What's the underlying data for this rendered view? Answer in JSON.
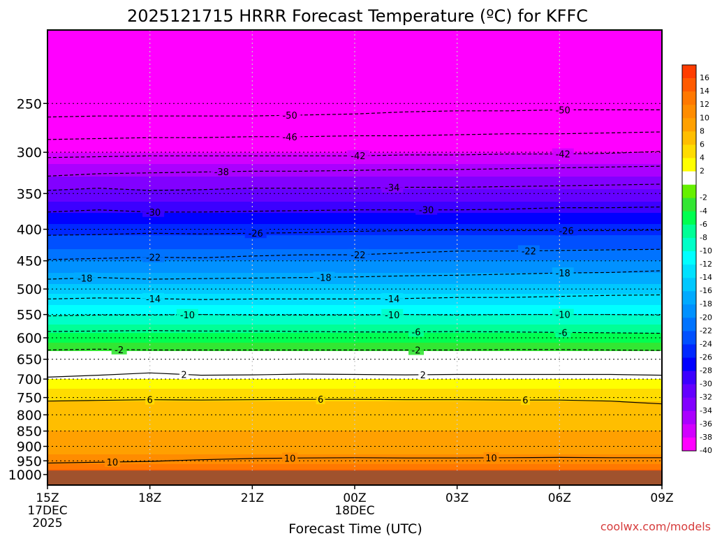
{
  "page": {
    "title": "2025121715 HRRR Forecast Temperature (ºC) for KFFC",
    "xlabel": "Forecast Time (UTC)",
    "credit": "coolwx.com/models"
  },
  "chart_data": {
    "type": "heatmap",
    "title": "2025121715 HRRR Forecast Temperature (ºC) for KFFC",
    "xlabel": "Forecast Time (UTC)",
    "ylabel": "",
    "x_unit": "hours from 15Z 17DEC 2025",
    "xlim": [
      0,
      18
    ],
    "x_ticks": [
      {
        "value": 0,
        "lines": [
          "15Z",
          "17DEC",
          "2025"
        ]
      },
      {
        "value": 3,
        "lines": [
          "18Z"
        ]
      },
      {
        "value": 6,
        "lines": [
          "21Z"
        ]
      },
      {
        "value": 9,
        "lines": [
          "00Z",
          "18DEC"
        ]
      },
      {
        "value": 12,
        "lines": [
          "03Z"
        ]
      },
      {
        "value": 15,
        "lines": [
          "06Z"
        ]
      },
      {
        "value": 18,
        "lines": [
          "09Z"
        ]
      }
    ],
    "y_axis": {
      "label": "",
      "scale": "log",
      "inverted": true,
      "ylim": [
        1040,
        190
      ]
    },
    "y_ticks": [
      250,
      300,
      350,
      400,
      450,
      500,
      550,
      600,
      650,
      700,
      750,
      800,
      850,
      900,
      950,
      1000
    ],
    "surface_pressure": 985,
    "grid": true,
    "legend": "right colorbar",
    "colorbar": {
      "levels": [
        {
          "label": "16",
          "color": "#ff3c00"
        },
        {
          "label": "14",
          "color": "#ff5a00"
        },
        {
          "label": "12",
          "color": "#ff7800"
        },
        {
          "label": "10",
          "color": "#ff8c00"
        },
        {
          "label": "8",
          "color": "#ffa000"
        },
        {
          "label": "6",
          "color": "#ffbe00"
        },
        {
          "label": "4",
          "color": "#ffdc00"
        },
        {
          "label": "2",
          "color": "#ffff00"
        },
        {
          "label": "",
          "color": "#ffffff"
        },
        {
          "label": "-2",
          "color": "#66f000"
        },
        {
          "label": "-4",
          "color": "#33e633"
        },
        {
          "label": "-6",
          "color": "#00ff50"
        },
        {
          "label": "-8",
          "color": "#00ff96"
        },
        {
          "label": "-10",
          "color": "#00ffc8"
        },
        {
          "label": "-12",
          "color": "#00ffff"
        },
        {
          "label": "-14",
          "color": "#00e1ff"
        },
        {
          "label": "-16",
          "color": "#00c8ff"
        },
        {
          "label": "-18",
          "color": "#00aaff"
        },
        {
          "label": "-20",
          "color": "#0091ff"
        },
        {
          "label": "-22",
          "color": "#0073ff"
        },
        {
          "label": "-24",
          "color": "#0050ff"
        },
        {
          "label": "-26",
          "color": "#0028ff"
        },
        {
          "label": "-28",
          "color": "#0000ff"
        },
        {
          "label": "-30",
          "color": "#3c00ff"
        },
        {
          "label": "-32",
          "color": "#6400ff"
        },
        {
          "label": "-34",
          "color": "#8200ff"
        },
        {
          "label": "-36",
          "color": "#aa00ff"
        },
        {
          "label": "-38",
          "color": "#d200ff"
        },
        {
          "label": "-40",
          "color": "#ff00ff"
        }
      ]
    },
    "temperature_profile": {
      "pressure": [
        1000,
        975,
        950,
        925,
        900,
        875,
        850,
        825,
        800,
        775,
        750,
        725,
        700,
        685,
        670,
        655,
        640,
        630,
        620,
        600,
        580,
        560,
        540,
        520,
        500,
        480,
        460,
        440,
        420,
        400,
        380,
        360,
        340,
        320,
        300,
        280,
        260,
        240,
        220,
        200
      ],
      "temperature": [
        16,
        13,
        11,
        10,
        9.5,
        9,
        8,
        7.5,
        7,
        6.5,
        5.5,
        4,
        2,
        1,
        0,
        -1,
        -1.5,
        -2,
        -3,
        -5,
        -7,
        -9,
        -11,
        -13,
        -15,
        -17,
        -19,
        -21,
        -23,
        -25,
        -27.5,
        -30,
        -32.5,
        -35,
        -38,
        -41,
        -44,
        -48,
        -52,
        -56
      ]
    },
    "contours": [
      {
        "value": 10,
        "style": "solid",
        "pressure": [
          958,
          955,
          952,
          946,
          942,
          940,
          939,
          940,
          940,
          939,
          938,
          939,
          939
        ],
        "labels": [
          {
            "x": 1.9,
            "text": "10"
          },
          {
            "x": 7.1,
            "text": "10"
          },
          {
            "x": 13.0,
            "text": "10"
          }
        ]
      },
      {
        "value": 6,
        "style": "solid",
        "pressure": [
          760,
          758,
          756,
          757,
          756,
          755,
          755,
          756,
          756,
          757,
          757,
          760,
          768
        ],
        "labels": [
          {
            "x": 3.0,
            "text": "6"
          },
          {
            "x": 8.0,
            "text": "6"
          },
          {
            "x": 14.0,
            "text": "6"
          }
        ]
      },
      {
        "value": 2,
        "style": "solid",
        "pressure": [
          695,
          690,
          684,
          690,
          689,
          687,
          688,
          689,
          688,
          688,
          688,
          688,
          690
        ],
        "labels": [
          {
            "x": 4.0,
            "text": "2"
          },
          {
            "x": 11.0,
            "text": "2"
          }
        ]
      },
      {
        "value": -2,
        "style": "dashed",
        "pressure": [
          628,
          626,
          628,
          628,
          628,
          628,
          628,
          628,
          628,
          627,
          627,
          628,
          629
        ],
        "labels": [
          {
            "x": 2.1,
            "text": "-2"
          },
          {
            "x": 10.8,
            "text": "-2"
          }
        ]
      },
      {
        "value": -6,
        "style": "dashed",
        "pressure": [
          586,
          585,
          584,
          585,
          585,
          586,
          587,
          587,
          586,
          587,
          588,
          589,
          590
        ],
        "labels": [
          {
            "x": 10.8,
            "text": "-6"
          },
          {
            "x": 15.1,
            "text": "-6"
          }
        ]
      },
      {
        "value": -10,
        "style": "dashed",
        "pressure": [
          553,
          551,
          551,
          550,
          551,
          551,
          551,
          550,
          551,
          550,
          550,
          550,
          551
        ],
        "labels": [
          {
            "x": 4.1,
            "text": "-10"
          },
          {
            "x": 10.1,
            "text": "-10"
          },
          {
            "x": 15.1,
            "text": "-10"
          }
        ]
      },
      {
        "value": -14,
        "style": "dashed",
        "pressure": [
          519,
          517,
          518,
          520,
          519,
          519,
          519,
          518,
          516,
          516,
          514,
          512,
          511
        ],
        "labels": [
          {
            "x": 3.1,
            "text": "-14"
          },
          {
            "x": 10.1,
            "text": "-14"
          }
        ]
      },
      {
        "value": -18,
        "style": "dashed",
        "pressure": [
          482,
          479,
          482,
          481,
          480,
          479,
          478,
          476,
          475,
          473,
          471,
          470,
          467
        ],
        "labels": [
          {
            "x": 1.1,
            "text": "-18"
          },
          {
            "x": 8.1,
            "text": "-18"
          },
          {
            "x": 15.1,
            "text": "-18"
          }
        ]
      },
      {
        "value": -22,
        "style": "dashed",
        "pressure": [
          448,
          446,
          444,
          445,
          442,
          440,
          440,
          437,
          434,
          434,
          433,
          432,
          431
        ],
        "labels": [
          {
            "x": 3.1,
            "text": "-22"
          },
          {
            "x": 9.1,
            "text": "-22"
          },
          {
            "x": 14.1,
            "text": "-22"
          }
        ]
      },
      {
        "value": -26,
        "style": "dashed",
        "pressure": [
          409,
          408,
          406,
          407,
          406,
          405,
          403,
          402,
          401,
          402,
          402,
          402,
          401
        ],
        "labels": [
          {
            "x": 6.1,
            "text": "-26"
          },
          {
            "x": 15.2,
            "text": "-26"
          }
        ]
      },
      {
        "value": -30,
        "style": "dashed",
        "pressure": [
          375,
          372,
          375,
          375,
          374,
          373,
          372,
          372,
          372,
          371,
          369,
          369,
          368
        ],
        "labels": [
          {
            "x": 3.1,
            "text": "-30"
          },
          {
            "x": 11.1,
            "text": "-30"
          }
        ]
      },
      {
        "value": -34,
        "style": "dashed",
        "pressure": [
          346,
          343,
          346,
          345,
          343,
          343,
          343,
          342,
          342,
          341,
          340,
          339,
          338
        ],
        "labels": [
          {
            "x": 10.1,
            "text": "-34"
          }
        ]
      },
      {
        "value": -38,
        "style": "dashed",
        "pressure": [
          328,
          325,
          324,
          323,
          322,
          322,
          321,
          320,
          320,
          319,
          318,
          317,
          316
        ],
        "labels": [
          {
            "x": 5.1,
            "text": "-38"
          }
        ]
      },
      {
        "value": -42,
        "style": "dashed",
        "pressure": [
          306,
          305,
          304,
          304,
          304,
          304,
          304,
          303,
          303,
          302,
          302,
          301,
          299
        ],
        "labels": [
          {
            "x": 9.1,
            "text": "-42"
          },
          {
            "x": 15.1,
            "text": "-42"
          }
        ]
      },
      {
        "value": -46,
        "style": "dashed",
        "pressure": [
          286,
          285,
          284,
          284,
          283,
          283,
          282,
          282,
          281,
          280,
          280,
          279,
          278
        ],
        "labels": [
          {
            "x": 7.1,
            "text": "-46"
          }
        ]
      },
      {
        "value": -50,
        "style": "dashed",
        "pressure": [
          263,
          262,
          262,
          262,
          262,
          261,
          260,
          258,
          257,
          257,
          256,
          256,
          256
        ],
        "labels": [
          {
            "x": 7.1,
            "text": "-50"
          },
          {
            "x": 15.1,
            "text": "-50"
          }
        ]
      }
    ]
  }
}
